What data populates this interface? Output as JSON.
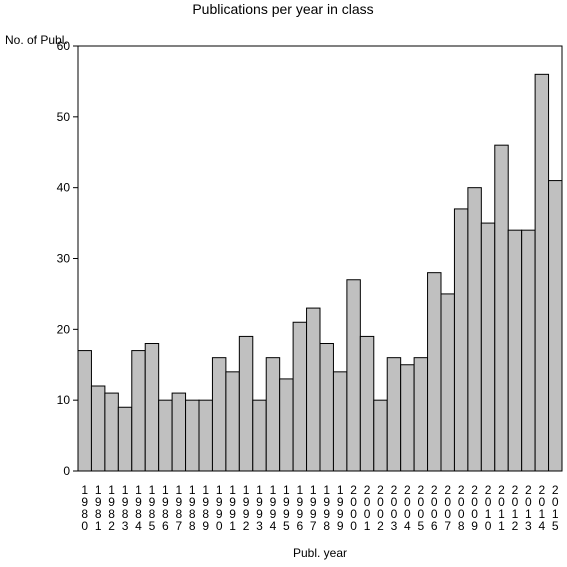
{
  "chart_data": {
    "type": "bar",
    "title": "Publications per year in class",
    "ylabel": "No. of Publ.",
    "xlabel": "Publ. year",
    "ylim": [
      0,
      60
    ],
    "yticks": [
      0,
      10,
      20,
      30,
      40,
      50,
      60
    ],
    "grid": false,
    "bar_color": "#c0c0c0",
    "categories": [
      "1980",
      "1981",
      "1982",
      "1983",
      "1984",
      "1985",
      "1986",
      "1987",
      "1988",
      "1989",
      "1990",
      "1991",
      "1992",
      "1993",
      "1994",
      "1995",
      "1996",
      "1997",
      "1998",
      "1999",
      "2000",
      "2001",
      "2002",
      "2003",
      "2004",
      "2005",
      "2006",
      "2007",
      "2008",
      "2009",
      "2010",
      "2011",
      "2012",
      "2013",
      "2014",
      "2015"
    ],
    "values": [
      17,
      12,
      11,
      9,
      17,
      18,
      10,
      11,
      10,
      10,
      16,
      14,
      19,
      10,
      16,
      13,
      21,
      23,
      18,
      14,
      27,
      19,
      10,
      16,
      15,
      16,
      28,
      25,
      37,
      40,
      35,
      46,
      34,
      34,
      56,
      41
    ]
  }
}
